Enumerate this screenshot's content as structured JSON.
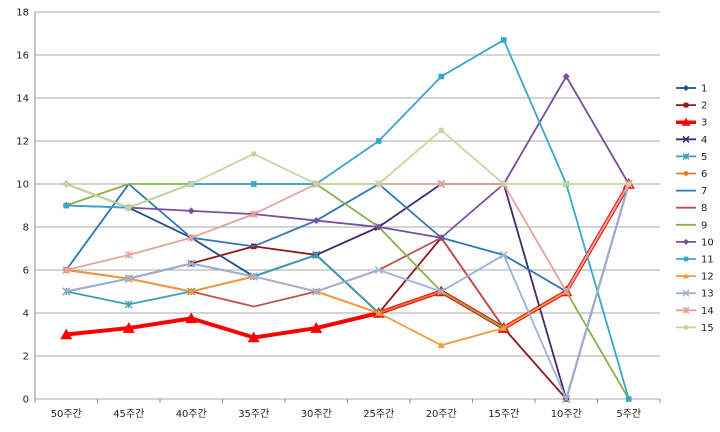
{
  "chart_data": {
    "type": "line",
    "title": "",
    "xlabel": "",
    "ylabel": "",
    "ylim": [
      0,
      18
    ],
    "yticks": [
      0,
      2,
      4,
      6,
      8,
      10,
      12,
      14,
      16,
      18
    ],
    "grid": true,
    "legend_position": "right",
    "categories": [
      "50주간",
      "45주간",
      "40주간",
      "35주간",
      "30주간",
      "25주간",
      "20주간",
      "15주간",
      "10주간",
      "5주간"
    ],
    "series": [
      {
        "name": "1",
        "color": "#1f4e8c",
        "marker": "diamond",
        "values": [
          10,
          8.9,
          7.5,
          5.7,
          6.7,
          4,
          5,
          3.3,
          5,
          10
        ]
      },
      {
        "name": "2",
        "color": "#8b1a1a",
        "marker": "square",
        "values": [
          6,
          5.6,
          6.3,
          7.1,
          6.7,
          4,
          7.5,
          3.3,
          0,
          10
        ]
      },
      {
        "name": "3",
        "color": "#ff0000",
        "marker": "triangle",
        "values": [
          3,
          3.3,
          3.75,
          2.86,
          3.3,
          4,
          5,
          3.3,
          5,
          10
        ],
        "bold": true
      },
      {
        "name": "4",
        "color": "#3f2a6b",
        "marker": "x",
        "values": [
          5,
          5.6,
          6.3,
          5.7,
          6.7,
          8,
          10,
          10,
          0,
          10
        ]
      },
      {
        "name": "5",
        "color": "#3aa0b5",
        "marker": "asterisk",
        "values": [
          5,
          4.4,
          5,
          5.7,
          6.7,
          4,
          5,
          3.3,
          5,
          10
        ]
      },
      {
        "name": "6",
        "color": "#e07b2a",
        "marker": "circle",
        "values": [
          6,
          5.6,
          5,
          5.7,
          5,
          4,
          5,
          3.3,
          5,
          10
        ]
      },
      {
        "name": "7",
        "color": "#2e75b6",
        "marker": "none",
        "values": [
          6,
          10,
          7.5,
          7.1,
          8.3,
          10,
          7.5,
          6.7,
          5,
          10
        ]
      },
      {
        "name": "8",
        "color": "#c0504d",
        "marker": "none",
        "values": [
          6,
          5.6,
          5,
          4.3,
          5,
          6,
          7.5,
          3.3,
          5,
          10
        ]
      },
      {
        "name": "9",
        "color": "#8cb04a",
        "marker": "none",
        "values": [
          9,
          10,
          10,
          10,
          10,
          8,
          5,
          3.3,
          5,
          0
        ]
      },
      {
        "name": "10",
        "color": "#7a4f9a",
        "marker": "diamond",
        "values": [
          9,
          8.9,
          8.75,
          8.6,
          8.3,
          8,
          7.5,
          10,
          15,
          10
        ]
      },
      {
        "name": "11",
        "color": "#3aa6c8",
        "marker": "square",
        "values": [
          9,
          8.9,
          10,
          10,
          10,
          12,
          15,
          16.7,
          10,
          0
        ]
      },
      {
        "name": "12",
        "color": "#f29a3c",
        "marker": "triangle",
        "values": [
          6,
          5.6,
          5,
          5.7,
          5,
          4,
          2.5,
          3.3,
          5,
          10
        ]
      },
      {
        "name": "13",
        "color": "#9db2d6",
        "marker": "x",
        "values": [
          5,
          5.6,
          6.3,
          5.7,
          5,
          6,
          5,
          6.7,
          0,
          10
        ]
      },
      {
        "name": "14",
        "color": "#e3a39e",
        "marker": "asterisk",
        "values": [
          6,
          6.7,
          7.5,
          8.6,
          10,
          10,
          10,
          10,
          5,
          10
        ]
      },
      {
        "name": "15",
        "color": "#c4d79b",
        "marker": "circle",
        "values": [
          10,
          8.9,
          10,
          11.4,
          10,
          10,
          12.5,
          10,
          10,
          10
        ]
      }
    ]
  }
}
